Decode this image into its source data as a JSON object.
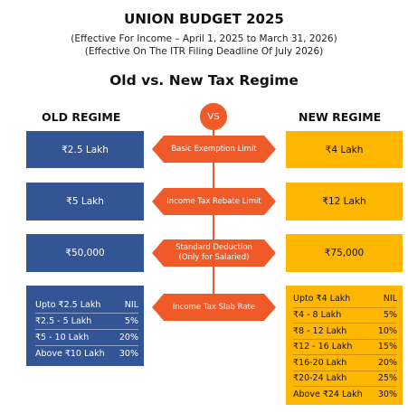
{
  "title": "UNION BUDGET 2025",
  "subtitle_line1": "(Effective For Income – April 1, 2025 to March 31, 2026)",
  "subtitle_line2": "(Effective On The ITR Filing Deadline Of July 2026)",
  "heading": "Old vs. New Tax Regime",
  "old_header": "OLD REGIME",
  "new_header": "NEW REGIME",
  "vs_label": "VS",
  "colors": {
    "old": "#335596",
    "new": "#ffb600",
    "accent": "#f05a28"
  },
  "rows": [
    {
      "label": "Basic Exemption Limit",
      "old": "₹2.5 Lakh",
      "new": "₹4 Lakh"
    },
    {
      "label": "Income Tax Rebate Limit",
      "old": "₹5 Lakh",
      "new": "₹12 Lakh"
    },
    {
      "label": "Standard Deduction",
      "label_sub": "(Only for Salaried)",
      "old": "₹50,000",
      "new": "₹75,000"
    }
  ],
  "slab_label": "Income Tax Slab Rate",
  "old_slabs": [
    {
      "range": "Upto ₹2.5 Lakh",
      "rate": "NIL"
    },
    {
      "range": "₹2.5 - 5 Lakh",
      "rate": "5%"
    },
    {
      "range": "₹5 - 10 Lakh",
      "rate": "20%"
    },
    {
      "range": "Above ₹10 Lakh",
      "rate": "30%"
    }
  ],
  "new_slabs": [
    {
      "range": "Upto ₹4 Lakh",
      "rate": "NIL"
    },
    {
      "range": "₹4 - 8 Lakh",
      "rate": "5%"
    },
    {
      "range": "₹8 - 12 Lakh",
      "rate": "10%"
    },
    {
      "range": "₹12 - 16 Lakh",
      "rate": "15%"
    },
    {
      "range": "₹16-20 Lakh",
      "rate": "20%"
    },
    {
      "range": "₹20-24 Lakh",
      "rate": "25%"
    },
    {
      "range": "Above ₹24 Lakh",
      "rate": "30%"
    }
  ]
}
